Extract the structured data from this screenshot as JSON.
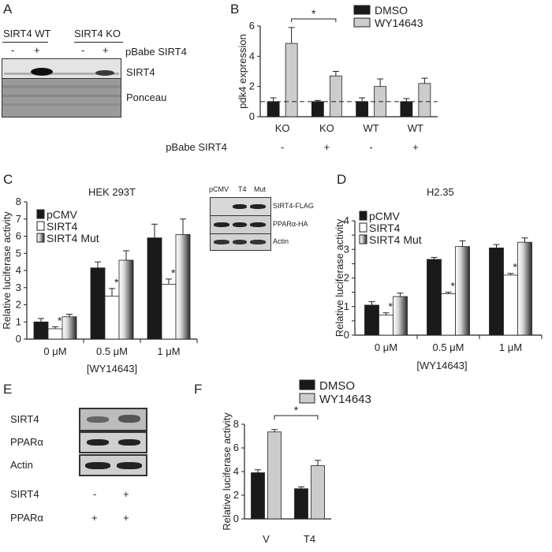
{
  "panels": {
    "A": {
      "letter": "A",
      "group_wt": "SIRT4 WT",
      "group_ko": "SIRT4 KO",
      "lanes": [
        "-",
        "+",
        "-",
        "+"
      ],
      "treatment": "pBabe SIRT4",
      "rows": [
        "SIRT4",
        "Ponceau"
      ]
    },
    "B": {
      "letter": "B",
      "legend": [
        "DMSO",
        "WY14643"
      ],
      "genotypes": [
        "KO",
        "KO",
        "WT",
        "WT"
      ],
      "treatment_label": "pBabe SIRT4",
      "treatment_signs": [
        "-",
        "+",
        "-",
        "+"
      ],
      "star": "*"
    },
    "C": {
      "letter": "C",
      "cell_line": "HEK 293T",
      "legend": [
        "pCMV",
        "SIRT4",
        "SIRT4 Mut"
      ],
      "bracket": "[WY14643]",
      "star": "*",
      "blot_lanes": [
        "pCMV",
        "T4",
        "Mut"
      ],
      "blot_rows": [
        "SIRT4-FLAG",
        "PPARα-HA",
        "Actin"
      ]
    },
    "D": {
      "letter": "D",
      "cell_line": "H2.35",
      "legend": [
        "pCMV",
        "SIRT4",
        "SIRT4 Mut"
      ],
      "bracket": "[WY14643]",
      "star": "*"
    },
    "E": {
      "letter": "E",
      "rows": [
        "SIRT4",
        "PPARα",
        "Actin"
      ],
      "cond_rows": [
        {
          "label": "SIRT4",
          "signs": [
            "-",
            "+"
          ]
        },
        {
          "label": "PPARα",
          "signs": [
            "+",
            "+"
          ]
        }
      ]
    },
    "F": {
      "letter": "F",
      "legend": [
        "DMSO",
        "WY14643"
      ],
      "star": "*"
    }
  },
  "colors": {
    "dark": "#1a1a1a",
    "light": "#cccccc",
    "white": "#ffffff"
  },
  "chart_data": [
    {
      "id": "B",
      "type": "bar",
      "categories": [
        "KO -",
        "KO +",
        "WT -",
        "WT +"
      ],
      "series": [
        {
          "name": "DMSO",
          "values": [
            1.0,
            1.0,
            1.0,
            1.0
          ],
          "errors": [
            0.25,
            0.08,
            0.25,
            0.2
          ]
        },
        {
          "name": "WY14643",
          "values": [
            4.85,
            2.7,
            2.0,
            2.2
          ],
          "errors": [
            1.05,
            0.3,
            0.5,
            0.35
          ]
        }
      ],
      "ylabel": "pdk4 expression",
      "ylim": [
        0,
        6
      ],
      "yticks": [
        0,
        2,
        4,
        6
      ],
      "reference_line": 1,
      "significance": {
        "between": [
          "KO - WY14643",
          "KO + WY14643"
        ],
        "symbol": "*"
      }
    },
    {
      "id": "C",
      "type": "bar",
      "categories": [
        "0 μM",
        "0.5 μM",
        "1 μM"
      ],
      "series": [
        {
          "name": "pCMV",
          "values": [
            1.0,
            4.15,
            5.9
          ],
          "errors": [
            0.2,
            0.35,
            0.8
          ]
        },
        {
          "name": "SIRT4",
          "values": [
            0.6,
            2.5,
            3.2
          ],
          "errors": [
            0.12,
            0.45,
            0.3
          ]
        },
        {
          "name": "SIRT4 Mut",
          "values": [
            1.3,
            4.6,
            6.1
          ],
          "errors": [
            0.15,
            0.55,
            0.9
          ]
        }
      ],
      "ylabel": "Relative luciferase activity",
      "xlabel": "[WY14643]",
      "ylim": [
        0,
        8
      ],
      "yticks": [
        0,
        1,
        2,
        3,
        4,
        5,
        6,
        7,
        8
      ],
      "significance_symbol": "*"
    },
    {
      "id": "D",
      "type": "bar",
      "categories": [
        "0 μM",
        "0.5 μM",
        "1 μM"
      ],
      "series": [
        {
          "name": "pCMV",
          "values": [
            1.05,
            2.65,
            3.05
          ],
          "errors": [
            0.12,
            0.07,
            0.12
          ]
        },
        {
          "name": "SIRT4",
          "values": [
            0.7,
            1.45,
            2.1
          ],
          "errors": [
            0.08,
            0.05,
            0.06
          ]
        },
        {
          "name": "SIRT4 Mut",
          "values": [
            1.35,
            3.1,
            3.25
          ],
          "errors": [
            0.12,
            0.2,
            0.15
          ]
        }
      ],
      "ylabel": "Relative luciferase activity",
      "xlabel": "[WY14643]",
      "ylim": [
        0,
        4
      ],
      "yticks": [
        0,
        0.5,
        1,
        1.5,
        2,
        2.5,
        3,
        3.5,
        4
      ],
      "ytick_labels": [
        "0",
        "",
        "1",
        "",
        "2",
        "",
        "3",
        "",
        "4"
      ],
      "significance_symbol": "*"
    },
    {
      "id": "F",
      "type": "bar",
      "categories": [
        "V",
        "T4"
      ],
      "series": [
        {
          "name": "DMSO",
          "values": [
            3.9,
            2.55
          ],
          "errors": [
            0.25,
            0.15
          ]
        },
        {
          "name": "WY14643",
          "values": [
            7.35,
            4.5
          ],
          "errors": [
            0.2,
            0.45
          ]
        }
      ],
      "ylabel": "Relative luciferase activity",
      "ylim": [
        0,
        8
      ],
      "yticks": [
        0,
        2,
        4,
        6,
        8
      ],
      "significance": {
        "between": [
          "V WY14643",
          "T4 WY14643"
        ],
        "symbol": "*"
      }
    }
  ]
}
